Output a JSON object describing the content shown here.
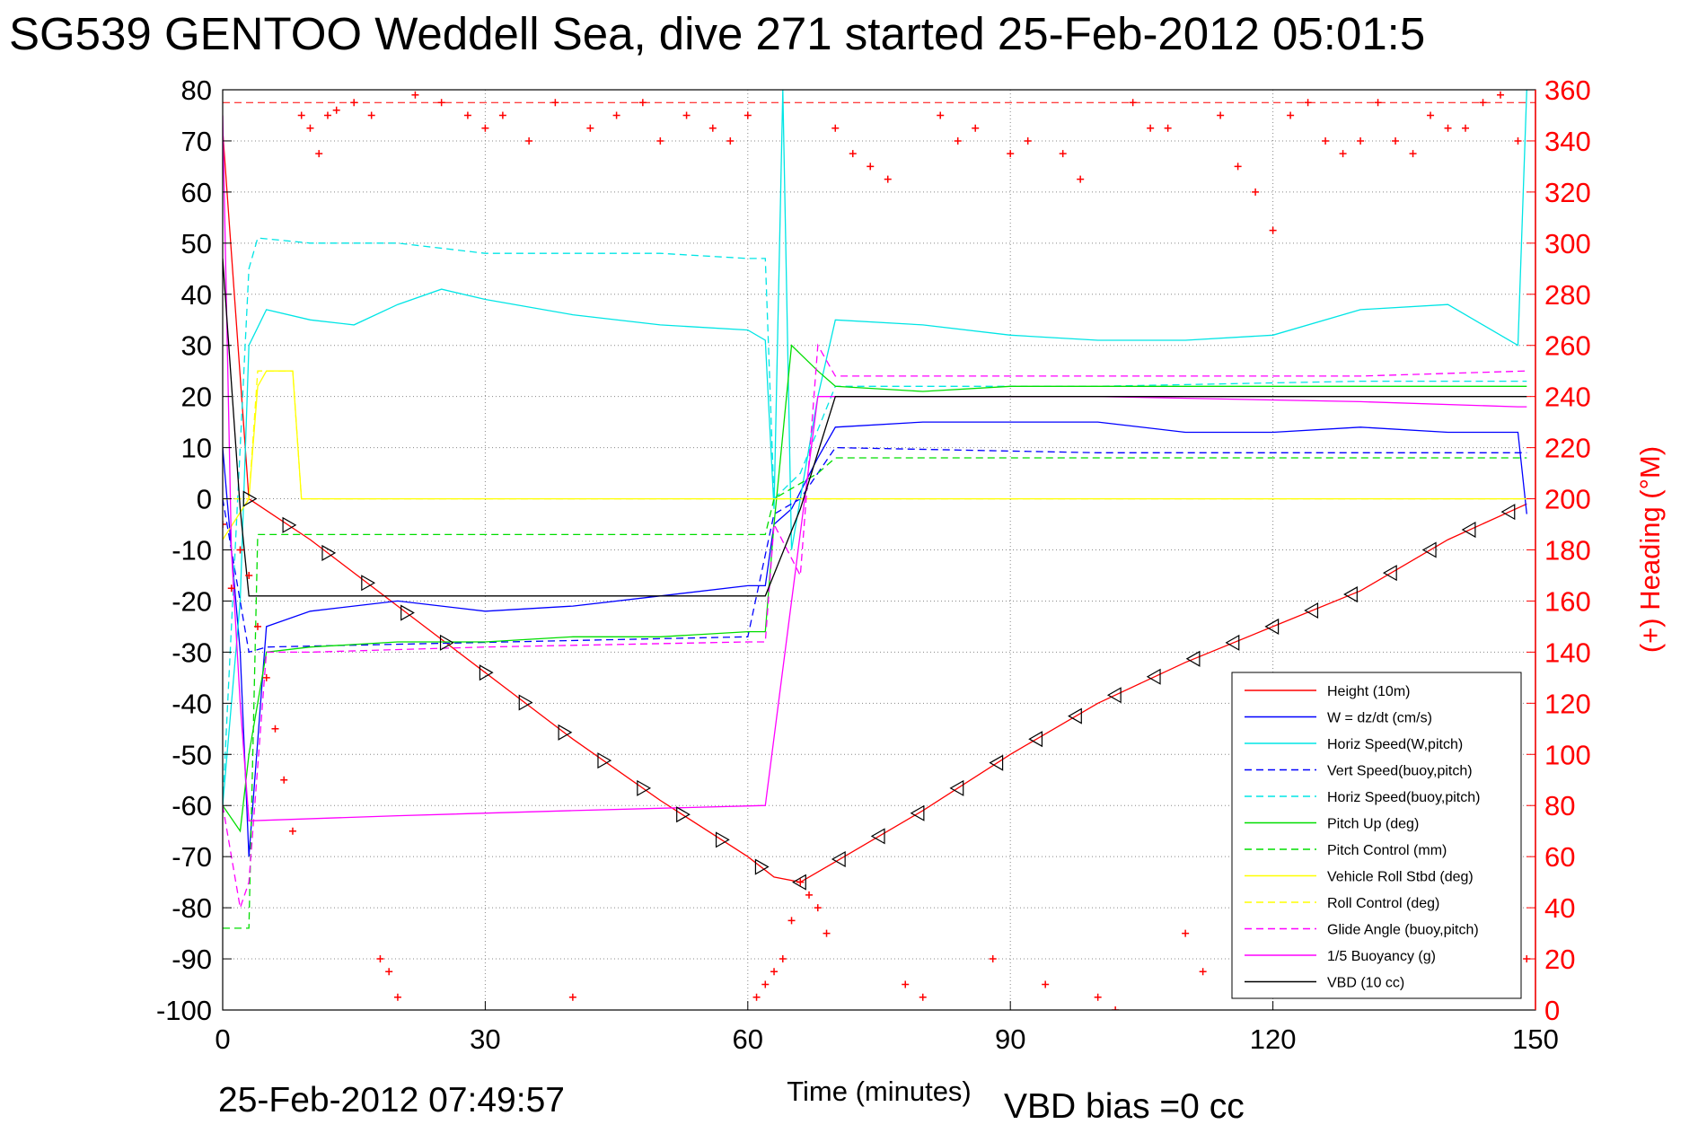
{
  "title": "SG539 GENTOO Weddell Sea, dive 271 started 25-Feb-2012 05:01:5",
  "footer": {
    "timestamp": "25-Feb-2012 07:49:57",
    "vbd_bias": "VBD bias =0 cc"
  },
  "colors": {
    "height": "#ff0000",
    "w": "#0000ff",
    "horiz_speed": "#00e5e5",
    "pitch": "#00dd00",
    "roll": "#ffff00",
    "glide": "#ff00ff",
    "vbd": "#000000",
    "heading": "#ff0000"
  },
  "chart_data": {
    "type": "line",
    "title": "SG539 GENTOO Weddell Sea, dive 271 started 25-Feb-2012 05:01:5",
    "xlabel": "Time (minutes)",
    "ylabel_right": "(+) Heading (°M)",
    "xlim": [
      0,
      150
    ],
    "ylim": [
      -100,
      80
    ],
    "ylim_right": [
      0,
      360
    ],
    "grid": true,
    "legend_position": "lower-right",
    "x_ticks": [
      "0",
      "30",
      "60",
      "90",
      "120",
      "150"
    ],
    "y_ticks": [
      "80",
      "70",
      "60",
      "50",
      "40",
      "30",
      "20",
      "10",
      "0",
      "-10",
      "-20",
      "-30",
      "-40",
      "-50",
      "-60",
      "-70",
      "-80",
      "-90",
      "-100"
    ],
    "y_ticks_right": [
      "360",
      "340",
      "320",
      "300",
      "280",
      "260",
      "240",
      "220",
      "200",
      "180",
      "160",
      "140",
      "120",
      "100",
      "80",
      "60",
      "40",
      "20",
      "0"
    ],
    "legend": [
      {
        "name": "Height (10m)",
        "style": "solid",
        "color": "#ff0000"
      },
      {
        "name": "W = dz/dt (cm/s)",
        "style": "solid",
        "color": "#0000ff"
      },
      {
        "name": "Horiz Speed(W,pitch)",
        "style": "solid",
        "color": "#00e5e5"
      },
      {
        "name": "Vert Speed(buoy,pitch)",
        "style": "dashed",
        "color": "#0000ff"
      },
      {
        "name": "Horiz Speed(buoy,pitch)",
        "style": "dashed",
        "color": "#00e5e5"
      },
      {
        "name": "Pitch Up (deg)",
        "style": "solid",
        "color": "#00dd00"
      },
      {
        "name": "Pitch Control (mm)",
        "style": "dashed",
        "color": "#00dd00"
      },
      {
        "name": "Vehicle Roll Stbd (deg)",
        "style": "solid",
        "color": "#ffff00"
      },
      {
        "name": "Roll Control (deg)",
        "style": "dashed",
        "color": "#ffff00"
      },
      {
        "name": "Glide Angle (buoy,pitch)",
        "style": "dashed",
        "color": "#ff00ff"
      },
      {
        "name": "1/5 Buoyancy (g)",
        "style": "solid",
        "color": "#ff00ff"
      },
      {
        "name": "VBD (10 cc)",
        "style": "solid",
        "color": "#000000"
      }
    ],
    "series": [
      {
        "name": "Height (10m)",
        "color": "#ff0000",
        "dash": "",
        "x": [
          0,
          3,
          10,
          20,
          30,
          40,
          50,
          60,
          63,
          66,
          70,
          80,
          90,
          100,
          110,
          120,
          130,
          140,
          149
        ],
        "y": [
          72,
          0,
          -8,
          -21,
          -34,
          -47,
          -59,
          -70,
          -74,
          -75,
          -71,
          -61,
          -50,
          -40,
          -32,
          -25,
          -18,
          -8,
          -1
        ]
      },
      {
        "name": "W = dz/dt (cm/s)",
        "color": "#0000ff",
        "dash": "",
        "x": [
          0,
          2,
          3,
          5,
          10,
          20,
          30,
          40,
          50,
          60,
          62,
          63,
          65,
          68,
          70,
          80,
          90,
          100,
          110,
          120,
          130,
          140,
          148,
          149
        ],
        "y": [
          10,
          -30,
          -70,
          -25,
          -22,
          -20,
          -22,
          -21,
          -19,
          -17,
          -17,
          -5,
          -2,
          8,
          14,
          15,
          15,
          15,
          13,
          13,
          14,
          13,
          13,
          -3
        ]
      },
      {
        "name": "Horiz Speed(W,pitch)",
        "color": "#00e5e5",
        "dash": "",
        "x": [
          0,
          2,
          3,
          5,
          10,
          15,
          20,
          25,
          30,
          40,
          50,
          60,
          62,
          63,
          64,
          65,
          68,
          70,
          80,
          90,
          100,
          110,
          120,
          130,
          140,
          148,
          149
        ],
        "y": [
          -60,
          -20,
          30,
          37,
          35,
          34,
          38,
          41,
          39,
          36,
          34,
          33,
          31,
          -2,
          80,
          -10,
          20,
          35,
          34,
          32,
          31,
          31,
          32,
          37,
          38,
          30,
          80
        ]
      },
      {
        "name": "Vert Speed(buoy,pitch)",
        "color": "#0000ff",
        "dash": "8,5",
        "x": [
          0,
          3,
          5,
          60,
          63,
          66,
          70,
          100,
          149
        ],
        "y": [
          0,
          -30,
          -29,
          -27,
          -3,
          0,
          10,
          9,
          9
        ]
      },
      {
        "name": "Horiz Speed(buoy,pitch)",
        "color": "#00e5e5",
        "dash": "8,5",
        "x": [
          0,
          3,
          4,
          10,
          20,
          30,
          40,
          50,
          60,
          62,
          63,
          66,
          70,
          100,
          130,
          149
        ],
        "y": [
          -60,
          45,
          51,
          50,
          50,
          48,
          48,
          48,
          47,
          47,
          0,
          5,
          22,
          22,
          23,
          23
        ]
      },
      {
        "name": "Pitch Up (deg)",
        "color": "#00dd00",
        "dash": "",
        "x": [
          0,
          2,
          3,
          5,
          10,
          20,
          30,
          40,
          50,
          60,
          62,
          63,
          65,
          68,
          70,
          80,
          90,
          100,
          110,
          120,
          130,
          140,
          149
        ],
        "y": [
          -60,
          -65,
          -50,
          -30,
          -29,
          -28,
          -28,
          -27,
          -27,
          -26,
          -26,
          -5,
          30,
          25,
          22,
          21,
          22,
          22,
          22,
          22,
          22,
          22,
          22
        ]
      },
      {
        "name": "Pitch Control (mm)",
        "color": "#00dd00",
        "dash": "8,5",
        "x": [
          0,
          3,
          4,
          10,
          30,
          50,
          62,
          63,
          68,
          70,
          100,
          130,
          149
        ],
        "y": [
          -84,
          -84,
          -7,
          -7,
          -7,
          -7,
          -7,
          0,
          5,
          8,
          8,
          8,
          8
        ]
      },
      {
        "name": "Vehicle Roll Stbd (deg)",
        "color": "#ffff00",
        "dash": "",
        "x": [
          0,
          3,
          4,
          5,
          6,
          8,
          9,
          10,
          12,
          30,
          60,
          63,
          70,
          90,
          120,
          149
        ],
        "y": [
          -8,
          0,
          22,
          25,
          25,
          25,
          0,
          0,
          0,
          0,
          0,
          0,
          0,
          0,
          0,
          0
        ]
      },
      {
        "name": "Roll Control (deg)",
        "color": "#ffff00",
        "dash": "8,5",
        "x": [
          0,
          3,
          4,
          8,
          9,
          30,
          60,
          63,
          70,
          100,
          130,
          149
        ],
        "y": [
          0,
          0,
          25,
          25,
          0,
          0,
          0,
          0,
          0,
          0,
          0,
          0
        ]
      },
      {
        "name": "Glide Angle (buoy,pitch)",
        "color": "#ff00ff",
        "dash": "8,5",
        "x": [
          0,
          2,
          3,
          5,
          10,
          30,
          60,
          62,
          63,
          66,
          68,
          70,
          100,
          130,
          149
        ],
        "y": [
          -60,
          -80,
          -75,
          -30,
          -30,
          -29,
          -28,
          -28,
          -5,
          -15,
          30,
          24,
          24,
          24,
          25
        ]
      },
      {
        "name": "1/5 Buoyancy (g)",
        "color": "#ff00ff",
        "dash": "",
        "x": [
          0,
          1,
          2,
          3,
          20,
          40,
          62,
          68,
          70,
          100,
          130,
          148,
          149
        ],
        "y": [
          75,
          -10,
          -40,
          -63,
          -62,
          -61,
          -60,
          20,
          20,
          20,
          19,
          18,
          18
        ]
      },
      {
        "name": "VBD (10 cc)",
        "color": "#000000",
        "dash": "",
        "x": [
          0,
          2,
          3,
          4,
          62,
          66,
          70,
          148,
          149
        ],
        "y": [
          47,
          -2,
          -19,
          -19,
          -19,
          -2,
          20,
          20,
          20
        ]
      }
    ],
    "heading_series": {
      "name": "Heading",
      "marker": "+",
      "color": "#ff0000",
      "x": [
        0,
        1,
        2,
        3,
        4,
        5,
        6,
        7,
        8,
        9,
        10,
        11,
        12,
        13,
        15,
        17,
        18,
        19,
        20,
        22,
        25,
        28,
        30,
        32,
        35,
        38,
        40,
        42,
        45,
        48,
        50,
        53,
        56,
        58,
        60,
        61,
        62,
        63,
        64,
        65,
        66,
        67,
        68,
        69,
        70,
        72,
        74,
        76,
        78,
        80,
        82,
        84,
        86,
        88,
        90,
        92,
        94,
        96,
        98,
        100,
        102,
        104,
        106,
        108,
        110,
        112,
        114,
        116,
        118,
        120,
        122,
        124,
        126,
        128,
        130,
        132,
        134,
        136,
        138,
        140,
        142,
        144,
        146,
        148,
        149
      ],
      "y": [
        190,
        165,
        180,
        170,
        150,
        130,
        110,
        90,
        70,
        350,
        345,
        335,
        350,
        352,
        355,
        350,
        20,
        15,
        5,
        358,
        355,
        350,
        345,
        350,
        340,
        355,
        5,
        345,
        350,
        355,
        340,
        350,
        345,
        340,
        350,
        5,
        10,
        15,
        20,
        35,
        50,
        45,
        40,
        30,
        345,
        335,
        330,
        325,
        10,
        5,
        350,
        340,
        345,
        20,
        335,
        340,
        10,
        335,
        325,
        5,
        0,
        355,
        345,
        345,
        30,
        15,
        350,
        330,
        320,
        305,
        350,
        355,
        340,
        335,
        340,
        355,
        340,
        335,
        350,
        345,
        345,
        355,
        358,
        340,
        20
      ]
    }
  }
}
